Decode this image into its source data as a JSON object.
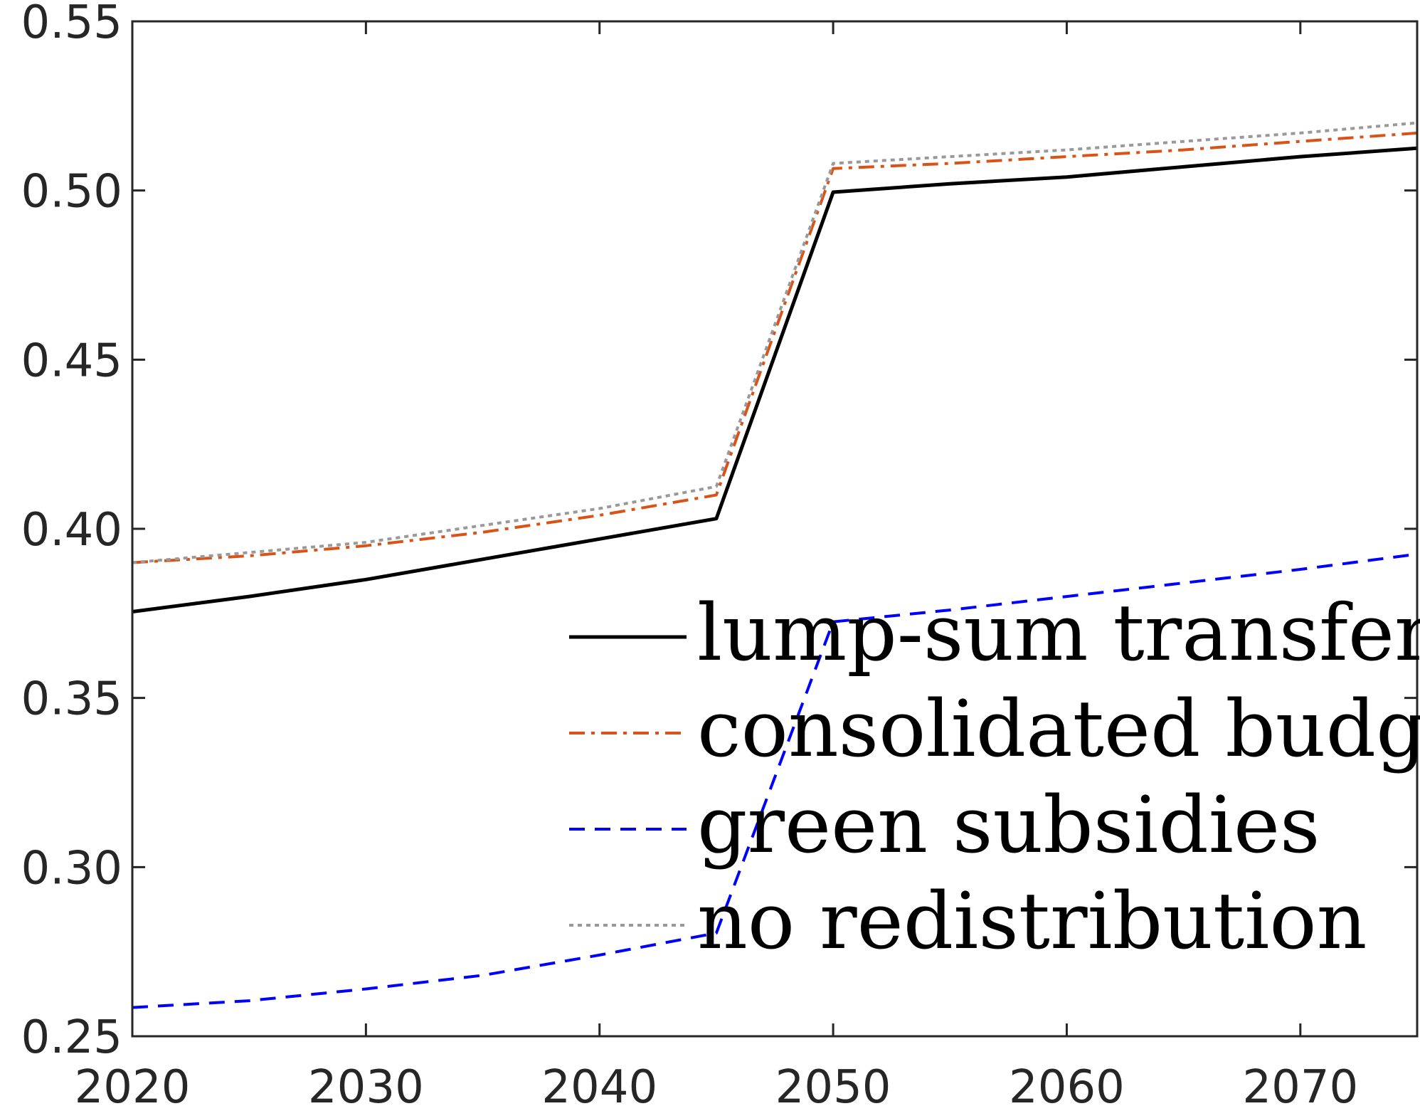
{
  "chart_data": {
    "type": "line",
    "title": "",
    "xlabel": "",
    "ylabel": "",
    "xlim": [
      2020,
      2075
    ],
    "ylim": [
      0.25,
      0.55
    ],
    "xticks": [
      2020,
      2030,
      2040,
      2050,
      2060,
      2070
    ],
    "xtick_labels": [
      "2020",
      "2030",
      "2040",
      "2050",
      "2060",
      "2070"
    ],
    "yticks": [
      0.25,
      0.3,
      0.35,
      0.4,
      0.45,
      0.5,
      0.55
    ],
    "ytick_labels": [
      "0.25",
      "0.30",
      "0.35",
      "0.40",
      "0.45",
      "0.50",
      "0.55"
    ],
    "grid": false,
    "legend_position": "bottom-right",
    "series": [
      {
        "name": "lump-sum transfers",
        "color": "#000000",
        "style": "solid",
        "x": [
          2020,
          2025,
          2030,
          2035,
          2040,
          2045,
          2050,
          2055,
          2060,
          2065,
          2070,
          2075
        ],
        "values": [
          0.3755,
          0.38,
          0.385,
          0.391,
          0.397,
          0.403,
          0.4995,
          0.502,
          0.504,
          0.507,
          0.51,
          0.5125
        ]
      },
      {
        "name": "consolidated budget",
        "color": "#D95319",
        "style": "dashdot",
        "x": [
          2020,
          2025,
          2030,
          2035,
          2040,
          2045,
          2050,
          2055,
          2060,
          2065,
          2070,
          2075
        ],
        "values": [
          0.39,
          0.392,
          0.395,
          0.399,
          0.404,
          0.41,
          0.5065,
          0.508,
          0.51,
          0.512,
          0.5145,
          0.517
        ]
      },
      {
        "name": "green subsidies",
        "color": "#0000FF",
        "style": "dashed",
        "x": [
          2020,
          2025,
          2030,
          2035,
          2040,
          2045,
          2050,
          2055,
          2060,
          2065,
          2070,
          2075
        ],
        "values": [
          0.2585,
          0.2605,
          0.264,
          0.268,
          0.274,
          0.2805,
          0.3725,
          0.376,
          0.38,
          0.384,
          0.388,
          0.3925
        ]
      },
      {
        "name": "no redistribution",
        "color": "#999999",
        "style": "dotted",
        "x": [
          2020,
          2025,
          2030,
          2035,
          2040,
          2045,
          2050,
          2055,
          2060,
          2065,
          2070,
          2075
        ],
        "values": [
          0.39,
          0.393,
          0.396,
          0.401,
          0.406,
          0.4125,
          0.508,
          0.51,
          0.512,
          0.5145,
          0.517,
          0.52
        ]
      }
    ]
  }
}
